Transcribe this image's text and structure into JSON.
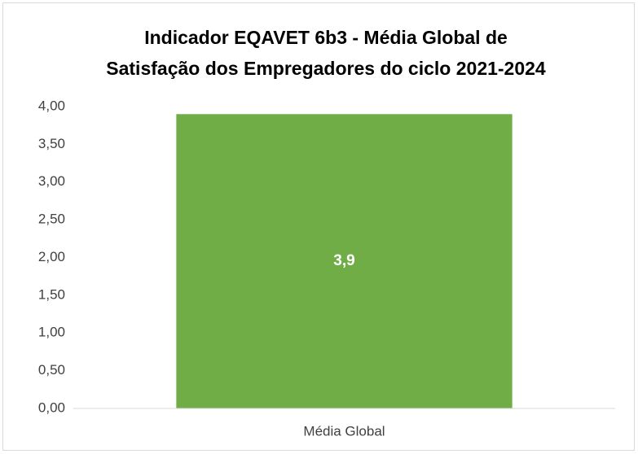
{
  "chart_data": {
    "type": "bar",
    "title": [
      "Indicador EQAVET 6b3 - Média Global de",
      "Satisfação dos Empregadores do ciclo 2021-2024"
    ],
    "categories": [
      "Média Global"
    ],
    "values": [
      3.9
    ],
    "value_labels": [
      "3,9"
    ],
    "color": "#70ad47",
    "ylim": [
      0,
      4
    ],
    "yticks": [
      {
        "value": 0,
        "label": "0,00"
      },
      {
        "value": 0.5,
        "label": "0,50"
      },
      {
        "value": 1,
        "label": "1,00"
      },
      {
        "value": 1.5,
        "label": "1,50"
      },
      {
        "value": 2,
        "label": "2,00"
      },
      {
        "value": 2.5,
        "label": "2,50"
      },
      {
        "value": 3,
        "label": "3,00"
      },
      {
        "value": 3.5,
        "label": "3,50"
      },
      {
        "value": 4,
        "label": "4,00"
      }
    ],
    "grid": false
  }
}
